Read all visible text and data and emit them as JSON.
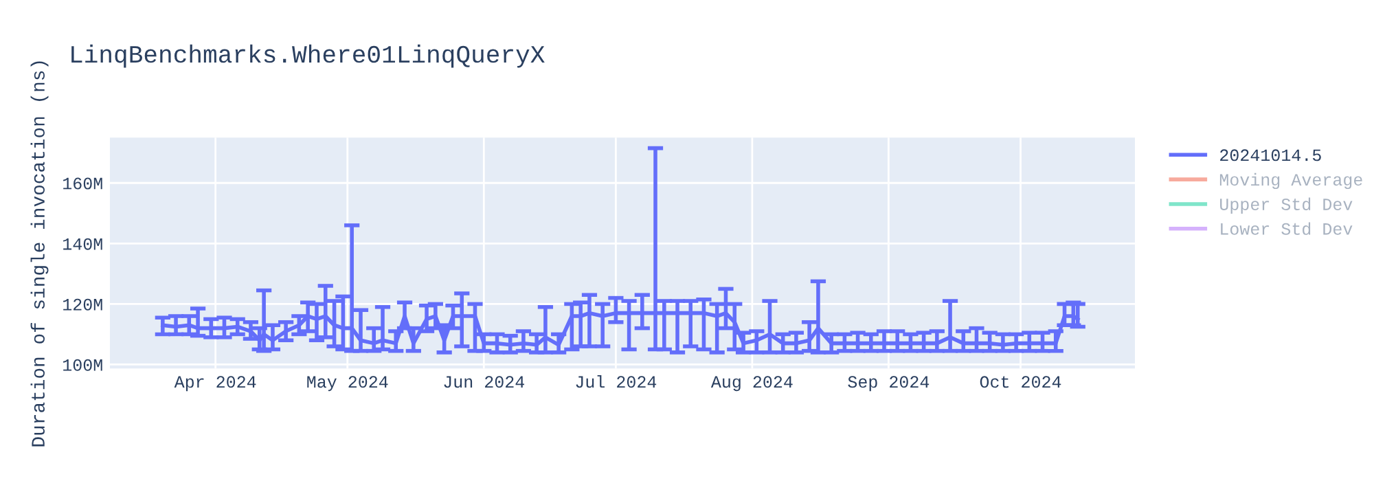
{
  "chart_data": {
    "type": "line",
    "title": "LinqBenchmarks.Where01LinqQueryX",
    "ylabel": "Duration of single invocation (ns)",
    "x": [
      "2024-03-20",
      "2024-03-23",
      "2024-03-26",
      "2024-03-28",
      "2024-03-31",
      "2024-04-03",
      "2024-04-06",
      "2024-04-09",
      "2024-04-11",
      "2024-04-12",
      "2024-04-14",
      "2024-04-17",
      "2024-04-20",
      "2024-04-22",
      "2024-04-24",
      "2024-04-26",
      "2024-04-28",
      "2024-04-30",
      "2024-05-02",
      "2024-05-04",
      "2024-05-07",
      "2024-05-09",
      "2024-05-12",
      "2024-05-14",
      "2024-05-16",
      "2024-05-19",
      "2024-05-21",
      "2024-05-23",
      "2024-05-25",
      "2024-05-27",
      "2024-05-30",
      "2024-06-01",
      "2024-06-04",
      "2024-06-07",
      "2024-06-10",
      "2024-06-13",
      "2024-06-15",
      "2024-06-18",
      "2024-06-21",
      "2024-06-23",
      "2024-06-25",
      "2024-06-28",
      "2024-07-01",
      "2024-07-04",
      "2024-07-07",
      "2024-07-10",
      "2024-07-12",
      "2024-07-15",
      "2024-07-18",
      "2024-07-21",
      "2024-07-24",
      "2024-07-26",
      "2024-07-28",
      "2024-07-30",
      "2024-08-02",
      "2024-08-05",
      "2024-08-08",
      "2024-08-11",
      "2024-08-14",
      "2024-08-16",
      "2024-08-19",
      "2024-08-22",
      "2024-08-25",
      "2024-08-28",
      "2024-08-31",
      "2024-09-03",
      "2024-09-06",
      "2024-09-09",
      "2024-09-12",
      "2024-09-15",
      "2024-09-18",
      "2024-09-21",
      "2024-09-24",
      "2024-09-27",
      "2024-09-30",
      "2024-10-03",
      "2024-10-06",
      "2024-10-09",
      "2024-10-11",
      "2024-10-13",
      "2024-10-14"
    ],
    "series": [
      {
        "name": "20241014.5",
        "color": "#636efa",
        "values": [
          113000000,
          112500000,
          113000000,
          112000000,
          112000000,
          112000000,
          112500000,
          111000000,
          108000000,
          110000000,
          108000000,
          111000000,
          113000000,
          116000000,
          115000000,
          116000000,
          113000000,
          112000000,
          112000000,
          108000000,
          107000000,
          108000000,
          107000000,
          116000000,
          107000000,
          115000000,
          116000000,
          108000000,
          116000000,
          116000000,
          116000000,
          107000000,
          107000000,
          106500000,
          107000000,
          106500000,
          109000000,
          106500000,
          116000000,
          116000000,
          117000000,
          116000000,
          117000000,
          117000000,
          117000000,
          117000000,
          117000000,
          117000000,
          117000000,
          117000000,
          116000000,
          117000000,
          114000000,
          107000000,
          108000000,
          110000000,
          107000000,
          107000000,
          108000000,
          112000000,
          107000000,
          107000000,
          107000000,
          107000000,
          107000000,
          107000000,
          107000000,
          107000000,
          107000000,
          109000000,
          107000000,
          107000000,
          107000000,
          106500000,
          107000000,
          107000000,
          107000000,
          107000000,
          116000000,
          116000000,
          115000000
        ],
        "errors": [
          [
            110000000,
            115500000
          ],
          [
            110000000,
            116000000
          ],
          [
            110000000,
            116000000
          ],
          [
            109500000,
            118500000
          ],
          [
            109000000,
            115000000
          ],
          [
            109000000,
            115500000
          ],
          [
            110000000,
            115000000
          ],
          [
            108500000,
            114000000
          ],
          [
            105000000,
            112000000
          ],
          [
            104500000,
            124500000
          ],
          [
            105000000,
            113000000
          ],
          [
            108000000,
            114000000
          ],
          [
            110000000,
            116000000
          ],
          [
            111000000,
            120500000
          ],
          [
            108000000,
            120000000
          ],
          [
            109000000,
            126000000
          ],
          [
            106000000,
            121000000
          ],
          [
            105000000,
            122500000
          ],
          [
            104500000,
            146000000
          ],
          [
            104500000,
            118000000
          ],
          [
            104500000,
            112000000
          ],
          [
            105000000,
            119000000
          ],
          [
            104500000,
            111000000
          ],
          [
            112000000,
            120500000
          ],
          [
            104500000,
            112000000
          ],
          [
            111000000,
            119500000
          ],
          [
            112000000,
            120000000
          ],
          [
            104000000,
            113000000
          ],
          [
            112000000,
            119500000
          ],
          [
            106000000,
            123500000
          ],
          [
            104500000,
            120000000
          ],
          [
            104500000,
            110000000
          ],
          [
            104000000,
            110000000
          ],
          [
            104000000,
            109500000
          ],
          [
            104500000,
            111000000
          ],
          [
            104000000,
            110000000
          ],
          [
            104000000,
            119000000
          ],
          [
            104000000,
            110000000
          ],
          [
            105000000,
            120000000
          ],
          [
            106000000,
            120500000
          ],
          [
            106000000,
            123000000
          ],
          [
            106000000,
            120000000
          ],
          [
            114000000,
            122000000
          ],
          [
            105000000,
            121000000
          ],
          [
            112000000,
            123000000
          ],
          [
            105000000,
            171500000
          ],
          [
            105000000,
            121000000
          ],
          [
            104000000,
            121000000
          ],
          [
            106000000,
            121000000
          ],
          [
            105000000,
            121500000
          ],
          [
            104000000,
            120000000
          ],
          [
            112000000,
            125000000
          ],
          [
            105000000,
            120000000
          ],
          [
            104000000,
            110500000
          ],
          [
            104000000,
            111000000
          ],
          [
            104000000,
            121000000
          ],
          [
            104000000,
            110000000
          ],
          [
            104000000,
            110500000
          ],
          [
            104500000,
            114000000
          ],
          [
            104000000,
            127500000
          ],
          [
            104000000,
            110000000
          ],
          [
            104500000,
            110000000
          ],
          [
            104500000,
            110500000
          ],
          [
            104500000,
            110000000
          ],
          [
            104500000,
            111000000
          ],
          [
            104500000,
            111000000
          ],
          [
            104500000,
            110000000
          ],
          [
            104500000,
            110500000
          ],
          [
            104500000,
            111000000
          ],
          [
            104500000,
            121000000
          ],
          [
            104500000,
            111000000
          ],
          [
            104500000,
            112000000
          ],
          [
            104500000,
            110500000
          ],
          [
            104500000,
            110000000
          ],
          [
            104500000,
            110000000
          ],
          [
            104500000,
            110500000
          ],
          [
            104500000,
            110500000
          ],
          [
            104500000,
            111000000
          ],
          [
            113000000,
            120000000
          ],
          [
            113000000,
            120500000
          ],
          [
            112500000,
            120000000
          ]
        ]
      },
      {
        "name": "Moving Average",
        "color": "#ef553b",
        "values": [
          null,
          null,
          null,
          null,
          null,
          null,
          null,
          null,
          null,
          null,
          null,
          null,
          null,
          null,
          null,
          null,
          null,
          null,
          null,
          null,
          null,
          null,
          null,
          null,
          null,
          null,
          null,
          null,
          null,
          null,
          null,
          null,
          null,
          null,
          null,
          null,
          null,
          null,
          null,
          null,
          null,
          null,
          null,
          null,
          null,
          null,
          null,
          null,
          null,
          null,
          null,
          null,
          null,
          null,
          null,
          null,
          null,
          null,
          null,
          null,
          null,
          null,
          null,
          null,
          null,
          null,
          null,
          null,
          null,
          null,
          null,
          null,
          null,
          null,
          null,
          null,
          null,
          null,
          null,
          null,
          null
        ]
      },
      {
        "name": "Upper Std Dev",
        "color": "#00cc96",
        "values": [
          null,
          null,
          null,
          null,
          null,
          null,
          null,
          null,
          null,
          null,
          null,
          null,
          null,
          null,
          null,
          null,
          null,
          null,
          null,
          null,
          null,
          null,
          null,
          null,
          null,
          null,
          null,
          null,
          null,
          null,
          null,
          null,
          null,
          null,
          null,
          null,
          null,
          null,
          null,
          null,
          null,
          null,
          null,
          null,
          null,
          null,
          null,
          null,
          null,
          null,
          null,
          null,
          null,
          null,
          null,
          null,
          null,
          null,
          null,
          null,
          null,
          null,
          null,
          null,
          null,
          null,
          null,
          null,
          null,
          null,
          null,
          null,
          null,
          null,
          null,
          null,
          null,
          null,
          null,
          null,
          null
        ]
      },
      {
        "name": "Lower Std Dev",
        "color": "#ab63fa",
        "values": [
          null,
          null,
          null,
          null,
          null,
          null,
          null,
          null,
          null,
          null,
          null,
          null,
          null,
          null,
          null,
          null,
          null,
          null,
          null,
          null,
          null,
          null,
          null,
          null,
          null,
          null,
          null,
          null,
          null,
          null,
          null,
          null,
          null,
          null,
          null,
          null,
          null,
          null,
          null,
          null,
          null,
          null,
          null,
          null,
          null,
          null,
          null,
          null,
          null,
          null,
          null,
          null,
          null,
          null,
          null,
          null,
          null,
          null,
          null,
          null,
          null,
          null,
          null,
          null,
          null,
          null,
          null,
          null,
          null,
          null,
          null,
          null,
          null,
          null,
          null,
          null,
          null,
          null,
          null,
          null,
          null
        ]
      }
    ],
    "xlim": [
      "2024-03-08",
      "2024-10-27"
    ],
    "xticks": [
      {
        "value": "2024-04-01",
        "label": "Apr 2024"
      },
      {
        "value": "2024-05-01",
        "label": "May 2024"
      },
      {
        "value": "2024-06-01",
        "label": "Jun 2024"
      },
      {
        "value": "2024-07-01",
        "label": "Jul 2024"
      },
      {
        "value": "2024-08-01",
        "label": "Aug 2024"
      },
      {
        "value": "2024-09-01",
        "label": "Sep 2024"
      },
      {
        "value": "2024-10-01",
        "label": "Oct 2024"
      }
    ],
    "ylim": [
      98700000,
      175000000
    ],
    "yticks": [
      {
        "value": 100000000,
        "label": "100M"
      },
      {
        "value": 120000000,
        "label": "120M"
      },
      {
        "value": 140000000,
        "label": "140M"
      },
      {
        "value": 160000000,
        "label": "160M"
      }
    ],
    "grid": true,
    "legend": "top right",
    "marker": "none",
    "line_style": "solid"
  }
}
